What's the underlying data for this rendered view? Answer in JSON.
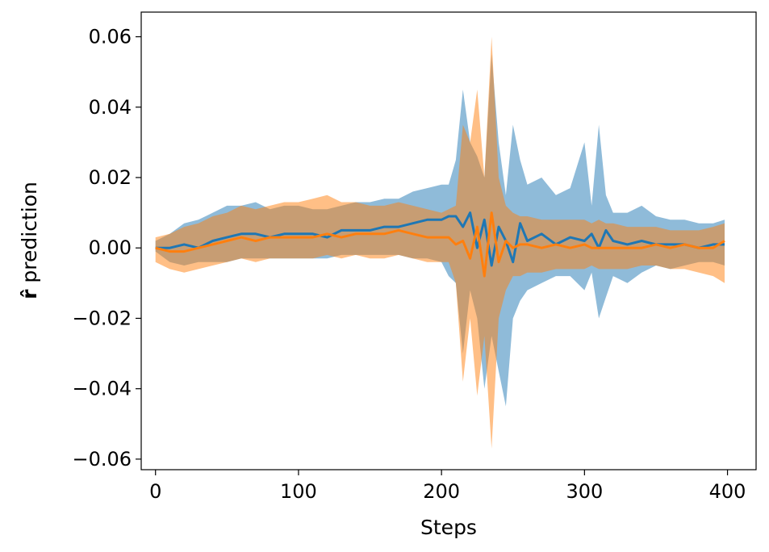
{
  "chart_data": {
    "type": "line",
    "title": "",
    "xlabel": "Steps",
    "ylabel_symbol": "r̂",
    "ylabel_rest": " prediction",
    "xlim": [
      -10,
      420
    ],
    "ylim": [
      -0.063,
      0.067
    ],
    "xticks": [
      0,
      100,
      200,
      300,
      400
    ],
    "xtick_labels": [
      "0",
      "100",
      "200",
      "300",
      "400"
    ],
    "yticks": [
      -0.06,
      -0.04,
      -0.02,
      0.0,
      0.02,
      0.04,
      0.06
    ],
    "ytick_labels": [
      "−0.06",
      "−0.04",
      "−0.02",
      "0.00",
      "0.02",
      "0.04",
      "0.06"
    ],
    "grid": false,
    "legend": "none",
    "series": [
      {
        "color": "#1f77b4",
        "band_opacity": 0.5,
        "x": [
          0,
          10,
          20,
          30,
          40,
          50,
          60,
          70,
          80,
          90,
          100,
          110,
          120,
          130,
          140,
          150,
          160,
          170,
          180,
          190,
          200,
          205,
          210,
          215,
          220,
          225,
          230,
          235,
          240,
          245,
          250,
          255,
          260,
          270,
          280,
          290,
          300,
          305,
          310,
          315,
          320,
          330,
          340,
          350,
          360,
          370,
          380,
          390,
          398
        ],
        "values": [
          0.0,
          0.0,
          0.001,
          0.0,
          0.002,
          0.003,
          0.004,
          0.004,
          0.003,
          0.004,
          0.004,
          0.004,
          0.003,
          0.005,
          0.005,
          0.005,
          0.006,
          0.006,
          0.007,
          0.008,
          0.008,
          0.009,
          0.009,
          0.006,
          0.01,
          0.0,
          0.008,
          -0.005,
          0.006,
          0.002,
          -0.004,
          0.007,
          0.002,
          0.004,
          0.001,
          0.003,
          0.002,
          0.004,
          0.0,
          0.005,
          0.002,
          0.001,
          0.002,
          0.001,
          0.001,
          0.001,
          0.0,
          0.001,
          0.001
        ],
        "upper": [
          0.002,
          0.004,
          0.007,
          0.008,
          0.01,
          0.012,
          0.012,
          0.013,
          0.011,
          0.012,
          0.012,
          0.011,
          0.011,
          0.012,
          0.013,
          0.013,
          0.014,
          0.014,
          0.016,
          0.017,
          0.018,
          0.018,
          0.025,
          0.045,
          0.03,
          0.026,
          0.02,
          0.055,
          0.03,
          0.015,
          0.035,
          0.025,
          0.018,
          0.02,
          0.015,
          0.017,
          0.03,
          0.012,
          0.035,
          0.015,
          0.01,
          0.01,
          0.012,
          0.009,
          0.008,
          0.008,
          0.007,
          0.007,
          0.008
        ],
        "lower": [
          -0.001,
          -0.004,
          -0.005,
          -0.004,
          -0.004,
          -0.004,
          -0.003,
          -0.003,
          -0.003,
          -0.003,
          -0.003,
          -0.003,
          -0.003,
          -0.002,
          -0.002,
          -0.002,
          -0.002,
          -0.002,
          -0.003,
          -0.003,
          -0.004,
          -0.008,
          -0.01,
          -0.03,
          -0.012,
          -0.02,
          -0.04,
          -0.025,
          -0.035,
          -0.045,
          -0.02,
          -0.015,
          -0.012,
          -0.01,
          -0.008,
          -0.008,
          -0.012,
          -0.007,
          -0.02,
          -0.014,
          -0.008,
          -0.01,
          -0.007,
          -0.005,
          -0.006,
          -0.005,
          -0.004,
          -0.004,
          -0.005
        ]
      },
      {
        "color": "#ff7f0e",
        "band_opacity": 0.5,
        "x": [
          0,
          10,
          20,
          30,
          40,
          50,
          60,
          70,
          80,
          90,
          100,
          110,
          120,
          130,
          140,
          150,
          160,
          170,
          180,
          190,
          200,
          205,
          210,
          215,
          220,
          225,
          230,
          235,
          240,
          245,
          250,
          255,
          260,
          270,
          280,
          290,
          300,
          305,
          310,
          315,
          320,
          330,
          340,
          350,
          360,
          370,
          380,
          390,
          398
        ],
        "values": [
          0.0,
          -0.001,
          -0.001,
          0.0,
          0.001,
          0.002,
          0.003,
          0.002,
          0.003,
          0.003,
          0.003,
          0.003,
          0.004,
          0.003,
          0.004,
          0.004,
          0.004,
          0.005,
          0.004,
          0.003,
          0.003,
          0.003,
          0.001,
          0.002,
          -0.003,
          0.006,
          -0.008,
          0.01,
          -0.004,
          0.002,
          0.0,
          0.001,
          0.001,
          0.0,
          0.001,
          0.0,
          0.001,
          0.0,
          0.0,
          0.0,
          0.0,
          0.0,
          0.0,
          0.001,
          0.0,
          0.001,
          0.0,
          0.0,
          0.002
        ],
        "upper": [
          0.003,
          0.004,
          0.006,
          0.007,
          0.009,
          0.01,
          0.012,
          0.011,
          0.012,
          0.013,
          0.013,
          0.014,
          0.015,
          0.013,
          0.013,
          0.012,
          0.012,
          0.013,
          0.012,
          0.011,
          0.01,
          0.011,
          0.012,
          0.035,
          0.03,
          0.045,
          0.02,
          0.06,
          0.02,
          0.012,
          0.01,
          0.009,
          0.009,
          0.008,
          0.008,
          0.008,
          0.008,
          0.007,
          0.008,
          0.007,
          0.007,
          0.006,
          0.006,
          0.006,
          0.005,
          0.005,
          0.005,
          0.006,
          0.007
        ],
        "lower": [
          -0.004,
          -0.006,
          -0.007,
          -0.006,
          -0.005,
          -0.004,
          -0.003,
          -0.004,
          -0.003,
          -0.003,
          -0.003,
          -0.003,
          -0.002,
          -0.003,
          -0.002,
          -0.003,
          -0.003,
          -0.002,
          -0.003,
          -0.004,
          -0.004,
          -0.004,
          -0.01,
          -0.038,
          -0.02,
          -0.042,
          -0.025,
          -0.057,
          -0.02,
          -0.012,
          -0.008,
          -0.008,
          -0.007,
          -0.007,
          -0.006,
          -0.006,
          -0.006,
          -0.005,
          -0.006,
          -0.006,
          -0.006,
          -0.006,
          -0.005,
          -0.005,
          -0.006,
          -0.006,
          -0.007,
          -0.008,
          -0.01
        ]
      }
    ]
  }
}
